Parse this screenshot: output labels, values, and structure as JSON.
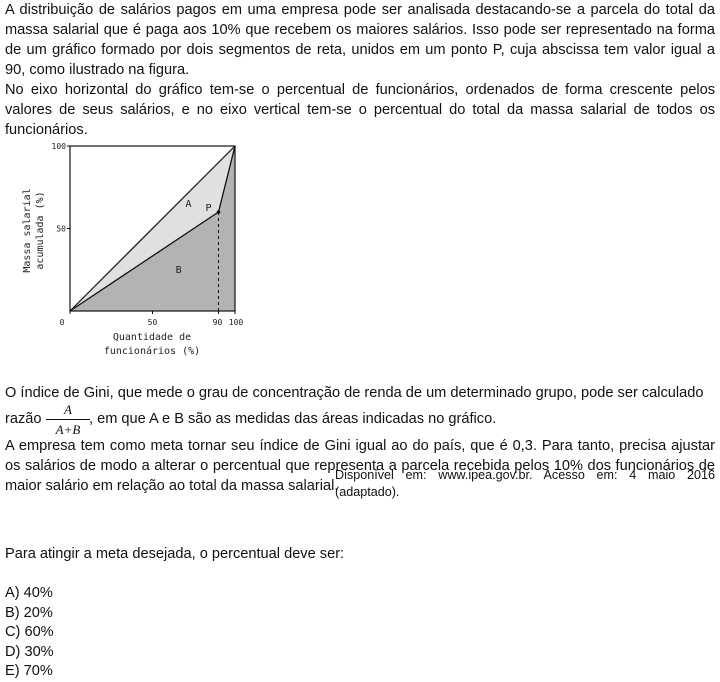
{
  "intro": {
    "paragraph1": "A distribuição de salários pagos em uma empresa pode ser analisada destacando-se a parcela do total da massa salarial que é paga aos 10% que recebem os maiores salários. Isso pode ser representado na forma de um gráfico formado por dois segmentos de reta, unidos em um ponto P, cuja abscissa tem valor igual a 90, como ilustrado na figura.",
    "paragraph2": "No eixo horizontal do gráfico tem-se o percentual de funcionários, ordenados de forma crescente pelos valores de seus salários, e no eixo vertical tem-se o percentual do total da massa salarial de todos os funcionários."
  },
  "chart_data": {
    "type": "line",
    "xlabel_line1": "Quantidade de",
    "xlabel_line2": "funcionários (%)",
    "ylabel_line1": "Massa salarial",
    "ylabel_line2": "acumulada (%)",
    "xlim": [
      0,
      100
    ],
    "ylim": [
      0,
      100
    ],
    "x_ticks": [
      "0",
      "50",
      "90",
      "100"
    ],
    "y_ticks": [
      "100",
      "50"
    ],
    "series": [
      {
        "x": [
          0,
          100
        ],
        "y": [
          0,
          100
        ]
      },
      {
        "x": [
          0,
          90,
          100
        ],
        "y": [
          0,
          60,
          100
        ]
      }
    ],
    "point": {
      "label": "P",
      "x": 90,
      "y": 60
    },
    "region_labels": [
      "A",
      "B"
    ],
    "colors": {
      "region_a": "#e0e0e0",
      "region_b": "#b3b3b3",
      "line": "#111111"
    }
  },
  "gini": {
    "line1": "O índice de Gini, que mede o grau de concentração de renda de um determinado grupo, pode ser calculado",
    "prefix": "razão",
    "numerator": "A",
    "denominator": "A+B",
    "suffix": ", em que A e B são as medidas das áreas indicadas no gráfico."
  },
  "goal": "A empresa tem como meta tornar seu índice de Gini igual ao do país, que é 0,3. Para tanto, precisa ajustar os salários de modo a alterar o percentual que representa a parcela recebida pelos 10% dos funcionários de maior salário em relação ao total da massa salarial.",
  "source": "Disponível em: www.ipea.gov.br. Acesso em: 4 maio 2016 (adaptado).",
  "question": "Para atingir a meta desejada, o percentual deve ser:",
  "options": [
    "A) 40%",
    "B) 20%",
    "C) 60%",
    "D) 30%",
    "E) 70%"
  ]
}
